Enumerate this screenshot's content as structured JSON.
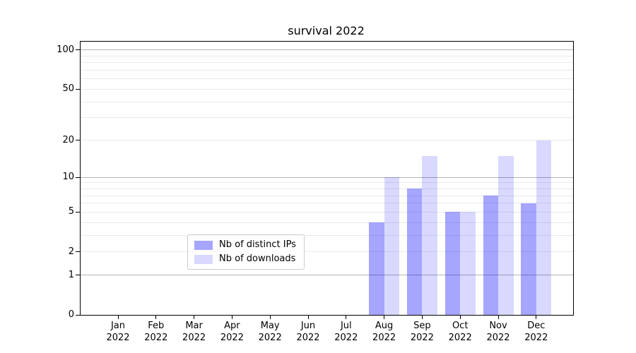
{
  "title": "survival 2022",
  "chart_data": {
    "type": "bar",
    "title": "survival 2022",
    "categories": [
      "Jan 2022",
      "Feb 2022",
      "Mar 2022",
      "Apr 2022",
      "May 2022",
      "Jun 2022",
      "Jul 2022",
      "Aug 2022",
      "Sep 2022",
      "Oct 2022",
      "Nov 2022",
      "Dec 2022"
    ],
    "series": [
      {
        "name": "Nb of distinct IPs",
        "color": "rgba(0,0,255,0.35)",
        "values": [
          0,
          0,
          0,
          0,
          0,
          0,
          0,
          4,
          8,
          5,
          7,
          6
        ]
      },
      {
        "name": "Nb of downloads",
        "color": "rgba(0,0,255,0.15)",
        "values": [
          0,
          0,
          0,
          0,
          0,
          0,
          0,
          10,
          15,
          5,
          15,
          20
        ]
      }
    ],
    "xlabel": "",
    "ylabel": "",
    "yscale": "log1p",
    "ylim": [
      0,
      116
    ],
    "yticks_labeled": [
      0,
      1,
      2,
      5,
      10,
      20,
      50,
      100
    ],
    "grid_major": [
      1,
      10,
      100
    ],
    "grid_minor": [
      2,
      3,
      4,
      5,
      6,
      7,
      8,
      9,
      20,
      30,
      40,
      50,
      60,
      70,
      80,
      90
    ],
    "grid": "horizontal",
    "legend_position": "lower-center-inside",
    "colors": {
      "bar_dark": "rgba(0,0,255,0.35)",
      "bar_light": "rgba(0,0,255,0.15)",
      "major_grid": "#b4b4b4",
      "minor_grid": "#e9e9e9",
      "spine": "#000000",
      "background": "#ffffff"
    }
  }
}
